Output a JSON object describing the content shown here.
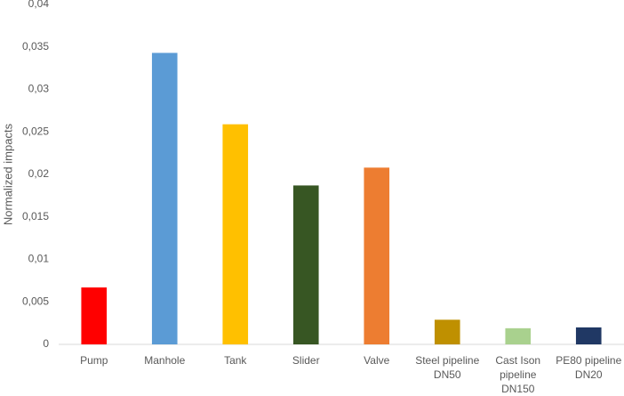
{
  "chart_data": {
    "type": "bar",
    "y_label": "Normalized impacts",
    "categories": [
      "Pump",
      "Manhole",
      "Tank",
      "Slider",
      "Valve",
      "Steel pipeline DN50",
      "Cast Ison pipeline DN150",
      "PE80 pipeline DN20"
    ],
    "values": [
      0.0067,
      0.0343,
      0.0259,
      0.0187,
      0.0208,
      0.0029,
      0.0019,
      0.002
    ],
    "colors": [
      "#ff0000",
      "#5b9bd5",
      "#ffc000",
      "#375623",
      "#ed7d31",
      "#bf9000",
      "#a9d18e",
      "#203864"
    ],
    "ylim": [
      0,
      0.04
    ],
    "yticks": [
      0,
      {
        "value": 0.005,
        "label": "0,005"
      },
      {
        "value": 0.01,
        "label": "0,01"
      },
      {
        "value": 0.015,
        "label": "0,015"
      },
      {
        "value": 0.02,
        "label": "0,02"
      },
      {
        "value": 0.025,
        "label": "0,025"
      },
      {
        "value": 0.03,
        "label": "0,03"
      },
      {
        "value": 0.035,
        "label": "0,035"
      },
      {
        "value": 0.04,
        "label": "0,04"
      }
    ],
    "grid": false
  }
}
